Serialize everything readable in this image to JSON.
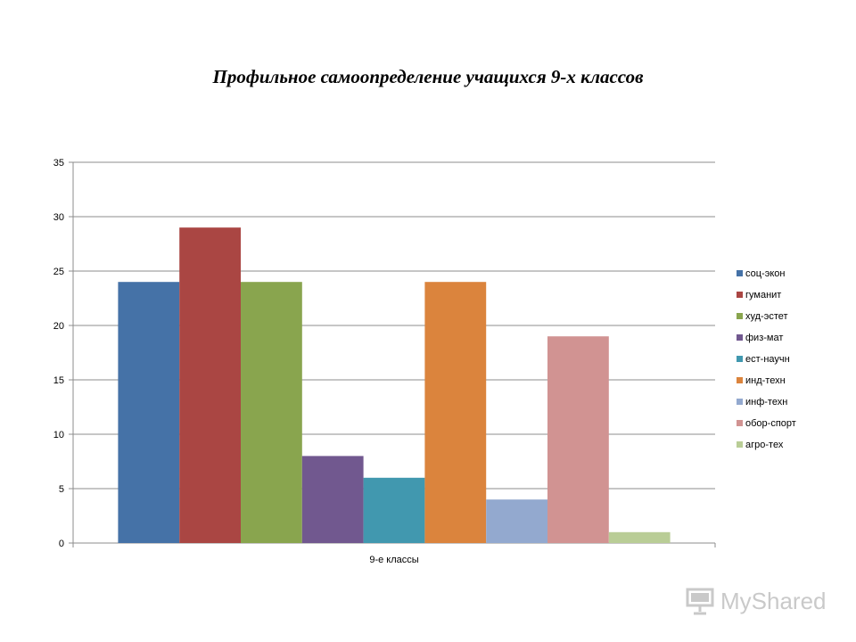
{
  "chart_data": {
    "type": "bar",
    "title": "Профильное самоопределение учащихся 9-х классов",
    "categories": [
      "9-е классы"
    ],
    "ylim": [
      0,
      35
    ],
    "yticks": [
      0,
      5,
      10,
      15,
      20,
      25,
      30,
      35
    ],
    "grid": true,
    "legend_position": "right",
    "series": [
      {
        "name": "соц-экон",
        "values": [
          24
        ],
        "color": "#4572A7"
      },
      {
        "name": "гуманит",
        "values": [
          29
        ],
        "color": "#AA4643"
      },
      {
        "name": "худ-эстет",
        "values": [
          24
        ],
        "color": "#89A54E"
      },
      {
        "name": "физ-мат",
        "values": [
          8
        ],
        "color": "#71588F"
      },
      {
        "name": "ест-научн",
        "values": [
          6
        ],
        "color": "#4198AF"
      },
      {
        "name": "инд-техн",
        "values": [
          24
        ],
        "color": "#DB843D"
      },
      {
        "name": "инф-техн",
        "values": [
          4
        ],
        "color": "#93A9CF"
      },
      {
        "name": "обор-спорт",
        "values": [
          19
        ],
        "color": "#D19392"
      },
      {
        "name": "агро-тех",
        "values": [
          1
        ],
        "color": "#B9CD96"
      }
    ]
  },
  "watermark": {
    "text": "MyShared",
    "icon": "projector-screen-icon"
  }
}
